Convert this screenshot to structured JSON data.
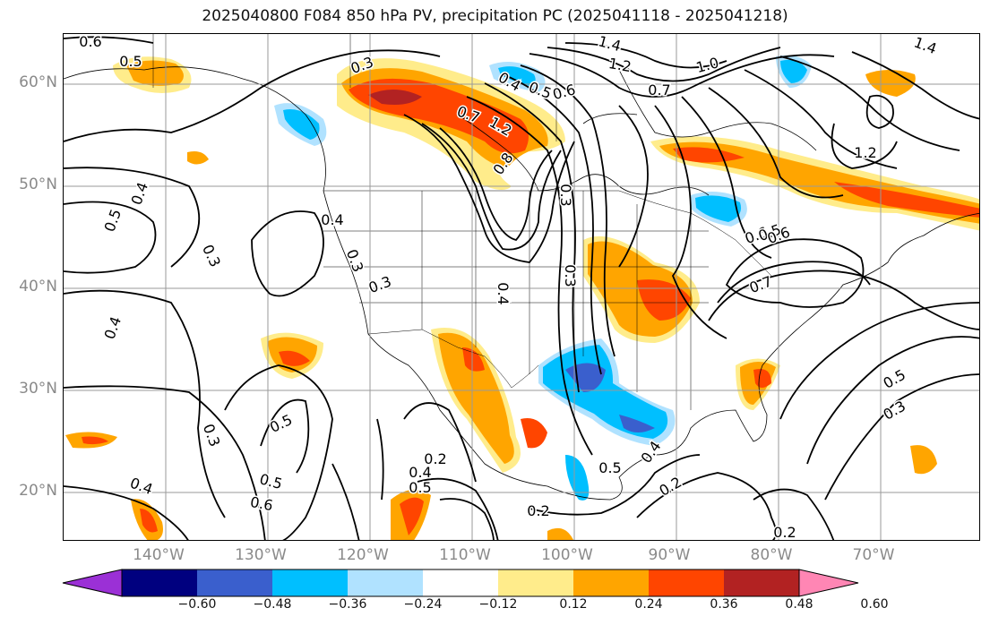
{
  "title": "2025040800 F084 850 hPa PV, precipitation PC (2025041118 - 2025041218)",
  "lat_labels": [
    "60°N",
    "50°N",
    "40°N",
    "30°N",
    "20°N"
  ],
  "lon_labels": [
    "140°W",
    "130°W",
    "120°W",
    "110°W",
    "100°W",
    "90°W",
    "80°W",
    "70°W"
  ],
  "colorbar": {
    "colors": [
      "#9b30d6",
      "#00007f",
      "#3a5fcd",
      "#00bfff",
      "#b0e2ff",
      "#ffffff",
      "#ffec8b",
      "#ffa500",
      "#ff4500",
      "#b22222",
      "#ff86b4"
    ],
    "tick_labels": [
      "−0.60",
      "−0.48",
      "−0.36",
      "−0.24",
      "−0.12",
      "0.12",
      "0.24",
      "0.36",
      "0.48",
      "0.60"
    ]
  },
  "contour_labels": [
    "0.6",
    "0.5",
    "1.4",
    "1.2",
    "1.0",
    "0.7",
    "1.4",
    "0.3",
    "0.4",
    "0.5",
    "0.6",
    "0.7",
    "1.2",
    "0.8",
    "1.2",
    "0.4",
    "0.5",
    "0.4",
    "0.3",
    "0.6",
    "0.3",
    "0.3",
    "0.3",
    "0.5",
    "0.3",
    "0.6",
    "0.7",
    "0.4",
    "0.4",
    "0.5",
    "0.3",
    "0.5",
    "0.3",
    "0.4",
    "0.5",
    "0.6",
    "0.2",
    "0.4",
    "0.5",
    "0.2",
    "0.5",
    "0.4",
    "0.2",
    "0.2"
  ]
}
